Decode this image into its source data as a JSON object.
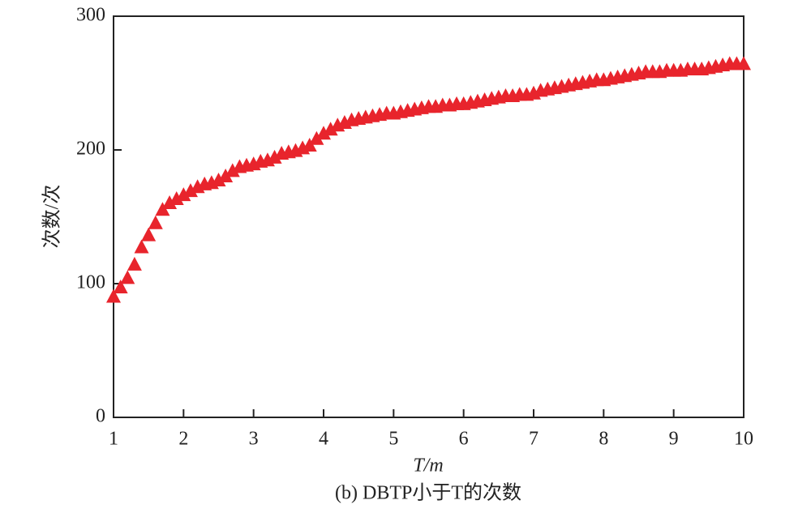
{
  "chart_data": {
    "type": "scatter",
    "xlabel": "T/m",
    "ylabel": "次数/次",
    "caption": "(b) DBTP小于T的次数",
    "marker": "triangle",
    "color": "#e8242c",
    "xlim": [
      1,
      10
    ],
    "ylim": [
      0,
      300
    ],
    "xticks": [
      1,
      2,
      3,
      4,
      5,
      6,
      7,
      8,
      9,
      10
    ],
    "yticks": [
      0,
      100,
      200,
      300
    ],
    "x": [
      1.0,
      1.1,
      1.2,
      1.3,
      1.4,
      1.5,
      1.6,
      1.7,
      1.8,
      1.9,
      2.0,
      2.1,
      2.2,
      2.3,
      2.4,
      2.5,
      2.6,
      2.7,
      2.8,
      2.9,
      3.0,
      3.1,
      3.2,
      3.3,
      3.4,
      3.5,
      3.6,
      3.7,
      3.8,
      3.9,
      4.0,
      4.1,
      4.2,
      4.3,
      4.4,
      4.5,
      4.6,
      4.7,
      4.8,
      4.9,
      5.0,
      5.1,
      5.2,
      5.3,
      5.4,
      5.5,
      5.6,
      5.7,
      5.8,
      5.9,
      6.0,
      6.1,
      6.2,
      6.3,
      6.4,
      6.5,
      6.6,
      6.7,
      6.8,
      6.9,
      7.0,
      7.1,
      7.2,
      7.3,
      7.4,
      7.5,
      7.6,
      7.7,
      7.8,
      7.9,
      8.0,
      8.1,
      8.2,
      8.3,
      8.4,
      8.5,
      8.6,
      8.7,
      8.8,
      8.9,
      9.0,
      9.1,
      9.2,
      9.3,
      9.4,
      9.5,
      9.6,
      9.7,
      9.8,
      9.9,
      10.0
    ],
    "values": [
      90,
      97,
      104,
      114,
      127,
      136,
      145,
      155,
      160,
      163,
      166,
      169,
      172,
      174,
      175,
      177,
      180,
      184,
      187,
      188,
      189,
      191,
      192,
      194,
      197,
      198,
      199,
      201,
      203,
      208,
      212,
      215,
      218,
      220,
      222,
      223,
      224,
      225,
      226,
      227,
      227,
      228,
      229,
      230,
      231,
      232,
      232,
      233,
      233,
      234,
      234,
      235,
      236,
      237,
      238,
      239,
      240,
      240,
      241,
      241,
      242,
      244,
      245,
      246,
      247,
      248,
      249,
      250,
      251,
      252,
      252,
      253,
      254,
      255,
      256,
      257,
      258,
      258,
      258,
      259,
      259,
      259,
      260,
      260,
      260,
      261,
      262,
      263,
      264,
      264,
      264
    ]
  }
}
